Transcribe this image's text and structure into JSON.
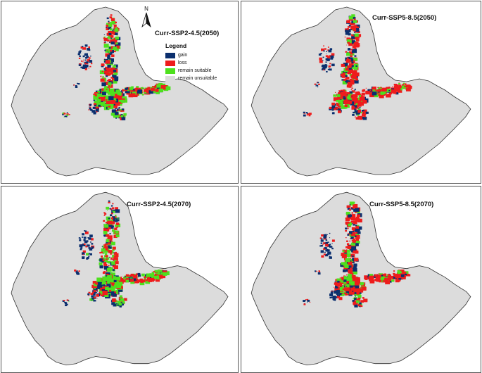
{
  "panels": [
    {
      "title": "Curr-SSP2-4.5(2050)"
    },
    {
      "title": "Curr-SSP5-8.5(2050)"
    },
    {
      "title": "Curr-SSP2-4.5(2070)"
    },
    {
      "title": "Curr-SSP5-8.5(2070)"
    }
  ],
  "legend": {
    "title": "Legend",
    "items": [
      {
        "label": "gain",
        "color": "#0b2f6e"
      },
      {
        "label": "loss",
        "color": "#ee1c1c"
      },
      {
        "label": "remain suitable",
        "color": "#4ee01e"
      },
      {
        "label": "remain unsuitable",
        "color": "#dcdcdc"
      }
    ]
  },
  "north_arrow": {
    "label": "N"
  },
  "colors": {
    "land": "#dcdcdc",
    "gain": "#0b2f6e",
    "loss": "#ee1c1c",
    "suitable": "#4ee01e"
  }
}
